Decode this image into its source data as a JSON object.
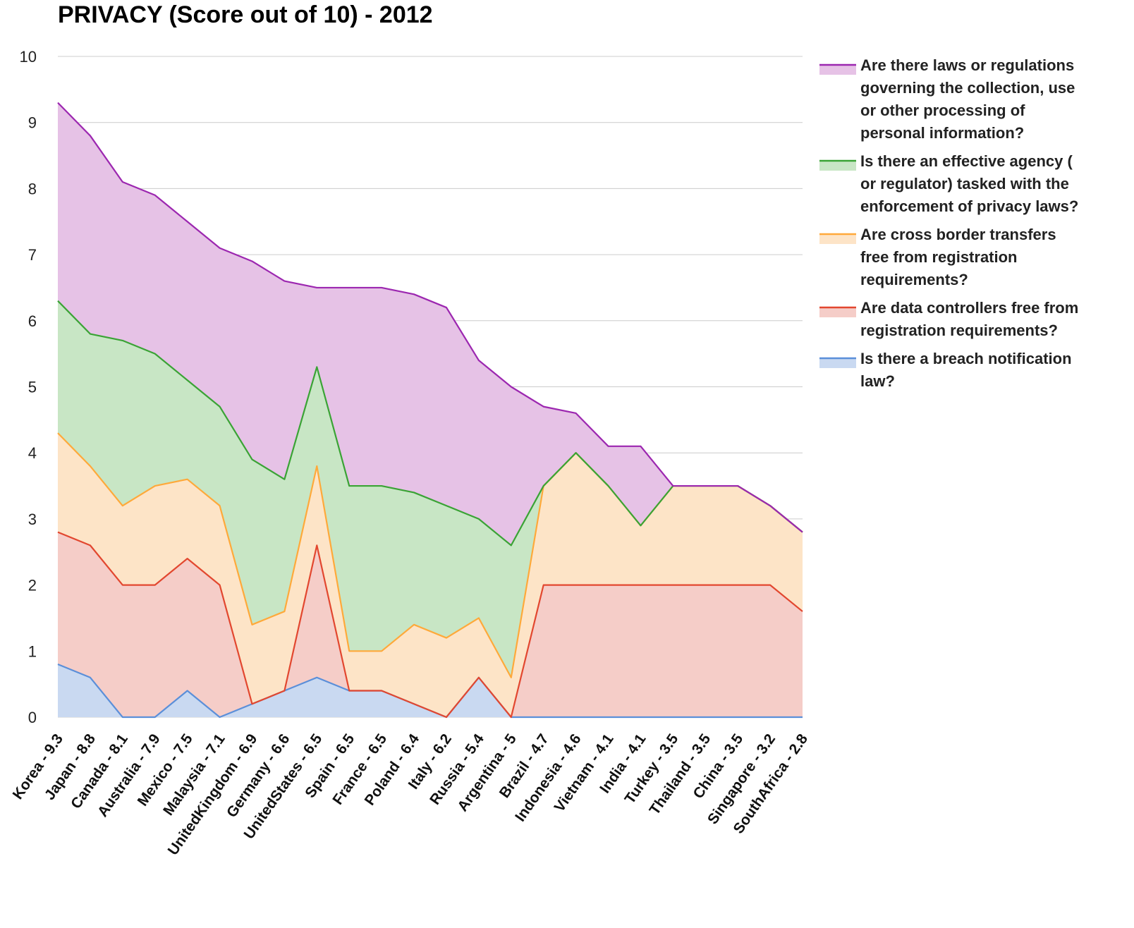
{
  "chart_data": {
    "type": "area",
    "stacked": false,
    "title": "PRIVACY (Score out of 10) - 2012",
    "xlabel": "",
    "ylabel": "",
    "ylim": [
      0,
      10
    ],
    "yticks": [
      "0",
      "1",
      "2",
      "3",
      "4",
      "5",
      "6",
      "7",
      "8",
      "9",
      "10"
    ],
    "grid": true,
    "legend_position": "right",
    "categories": [
      "Korea - 9.3",
      "Japan - 8.8",
      "Canada - 8.1",
      "Australia - 7.9",
      "Mexico - 7.5",
      "Malaysia - 7.1",
      "UnitedKingdom - 6.9",
      "Germany - 6.6",
      "UnitedStates - 6.5",
      "Spain - 6.5",
      "France - 6.5",
      "Poland - 6.4",
      "Italy - 6.2",
      "Russia - 5.4",
      "Argentina - 5",
      "Brazil - 4.7",
      "Indonesia - 4.6",
      "Vietnam - 4.1",
      "India - 4.1",
      "Turkey - 3.5",
      "Thailand - 3.5",
      "China - 3.5",
      "Singapore - 3.2",
      "SouthAfrica - 2.8"
    ],
    "series": [
      {
        "name": "Are there laws or regulations governing the collection, use or other processing of personal information?",
        "color": "#9c27b0",
        "fill": "#e6c2e6",
        "legend_lines": [
          "Are there laws or regulations",
          "governing the collection, use",
          "or other processing of",
          "personal information?"
        ],
        "values": [
          9.3,
          8.8,
          8.1,
          7.9,
          7.5,
          7.1,
          6.9,
          6.6,
          6.5,
          6.5,
          6.5,
          6.4,
          6.2,
          5.4,
          5.0,
          4.7,
          4.6,
          4.1,
          4.1,
          3.5,
          3.5,
          3.5,
          3.2,
          2.8
        ]
      },
      {
        "name": "Is there an effective agency ( or regulator) tasked with the enforcement of privacy laws?",
        "color": "#3aa335",
        "fill": "#c8e6c5",
        "legend_lines": [
          "Is there an effective agency (",
          "or regulator) tasked with the",
          "enforcement of privacy laws?"
        ],
        "values": [
          6.3,
          5.8,
          5.7,
          5.5,
          5.1,
          4.7,
          3.9,
          3.6,
          5.3,
          3.5,
          3.5,
          3.4,
          3.2,
          3.0,
          2.6,
          3.5,
          4.0,
          3.5,
          2.9,
          3.5,
          3.5,
          3.5,
          3.2,
          2.8
        ]
      },
      {
        "name": "Are cross border transfers free from registration requirements?",
        "color": "#ffa93a",
        "fill": "#fde4c7",
        "legend_lines": [
          "Are cross border transfers",
          "free from registration",
          "requirements?"
        ],
        "values": [
          4.3,
          3.8,
          3.2,
          3.5,
          3.6,
          3.2,
          1.4,
          1.6,
          3.8,
          1.0,
          1.0,
          1.4,
          1.2,
          1.5,
          0.6,
          3.5,
          4.0,
          3.5,
          2.9,
          3.5,
          3.5,
          3.5,
          3.2,
          2.8
        ]
      },
      {
        "name": "Are data controllers free from registration requirements?",
        "color": "#e2472f",
        "fill": "#f5cdc8",
        "legend_lines": [
          "Are data controllers free from",
          "registration requirements?"
        ],
        "values": [
          2.8,
          2.6,
          2.0,
          2.0,
          2.4,
          2.0,
          0.2,
          0.4,
          2.6,
          0.4,
          0.4,
          0.2,
          0.0,
          0.6,
          0.0,
          2.0,
          2.0,
          2.0,
          2.0,
          2.0,
          2.0,
          2.0,
          2.0,
          1.6
        ]
      },
      {
        "name": "Is there a breach notification law?",
        "color": "#5b8fd9",
        "fill": "#c9d9f1",
        "legend_lines": [
          "Is there a breach notification",
          "law?"
        ],
        "values": [
          0.8,
          0.6,
          0.0,
          0.0,
          0.4,
          0.0,
          0.2,
          0.4,
          0.6,
          0.4,
          0.4,
          0.2,
          0.0,
          0.6,
          0.0,
          0.0,
          0.0,
          0.0,
          0.0,
          0.0,
          0.0,
          0.0,
          0.0,
          0.0
        ]
      }
    ]
  }
}
